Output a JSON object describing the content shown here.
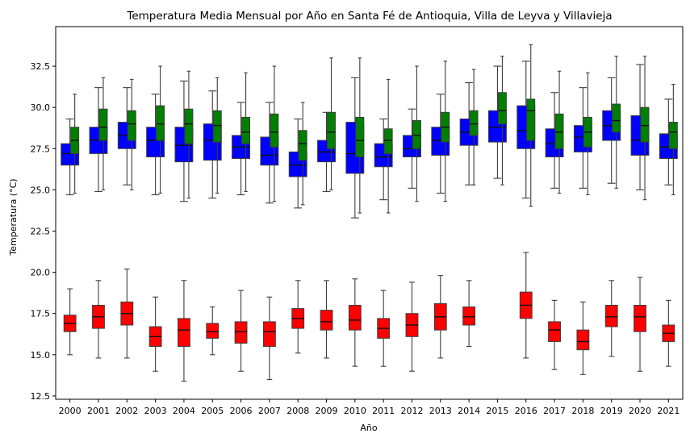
{
  "chart_data": {
    "type": "box",
    "title": "Temperatura Media Mensual por Año en Santa Fé de Antioquia, Villa de Leyva y Villavieja",
    "xlabel": "Año",
    "ylabel": "Temperatura (°C)",
    "ylim": [
      12.3,
      34.9
    ],
    "yticks": [
      "12.5",
      "15.0",
      "17.5",
      "20.0",
      "22.5",
      "25.0",
      "27.5",
      "30.0",
      "32.5"
    ],
    "categories": [
      "2000",
      "2001",
      "2002",
      "2003",
      "2004",
      "2005",
      "2006",
      "2007",
      "2008",
      "2009",
      "2010",
      "2011",
      "2012",
      "2013",
      "2014",
      "2015",
      "2016",
      "2017",
      "2018",
      "2019",
      "2020",
      "2021"
    ],
    "series": [
      {
        "color": "#0000ff",
        "boxes": [
          {
            "whislo": 24.7,
            "q1": 26.5,
            "med": 27.2,
            "q3": 27.8,
            "whishi": 29.3
          },
          {
            "whislo": 24.9,
            "q1": 27.2,
            "med": 28.0,
            "q3": 28.8,
            "whishi": 31.2
          },
          {
            "whislo": 25.3,
            "q1": 27.5,
            "med": 28.3,
            "q3": 29.1,
            "whishi": 31.2
          },
          {
            "whislo": 24.7,
            "q1": 27.0,
            "med": 28.0,
            "q3": 28.8,
            "whishi": 30.8
          },
          {
            "whislo": 24.3,
            "q1": 26.7,
            "med": 27.7,
            "q3": 28.8,
            "whishi": 31.6
          },
          {
            "whislo": 24.5,
            "q1": 26.8,
            "med": 28.0,
            "q3": 29.0,
            "whishi": 31.0
          },
          {
            "whislo": 24.7,
            "q1": 26.9,
            "med": 27.6,
            "q3": 28.3,
            "whishi": 30.3
          },
          {
            "whislo": 24.2,
            "q1": 26.5,
            "med": 27.1,
            "q3": 28.2,
            "whishi": 30.3
          },
          {
            "whislo": 23.9,
            "q1": 25.8,
            "med": 26.5,
            "q3": 27.3,
            "whishi": 29.3
          },
          {
            "whislo": 24.9,
            "q1": 26.7,
            "med": 27.3,
            "q3": 28.0,
            "whishi": 29.7
          },
          {
            "whislo": 23.3,
            "q1": 26.0,
            "med": 27.2,
            "q3": 29.1,
            "whishi": 31.8
          },
          {
            "whislo": 24.4,
            "q1": 26.4,
            "med": 27.0,
            "q3": 27.8,
            "whishi": 29.3
          },
          {
            "whislo": 25.1,
            "q1": 27.0,
            "med": 27.5,
            "q3": 28.3,
            "whishi": 29.9
          },
          {
            "whislo": 24.8,
            "q1": 27.1,
            "med": 28.0,
            "q3": 28.8,
            "whishi": 30.8
          },
          {
            "whislo": 25.3,
            "q1": 27.7,
            "med": 28.5,
            "q3": 29.3,
            "whishi": 31.5
          },
          {
            "whislo": 25.7,
            "q1": 27.9,
            "med": 28.8,
            "q3": 29.8,
            "whishi": 32.5
          },
          {
            "whislo": 24.5,
            "q1": 27.5,
            "med": 28.6,
            "q3": 30.1,
            "whishi": 32.8
          },
          {
            "whislo": 25.1,
            "q1": 27.0,
            "med": 27.8,
            "q3": 28.7,
            "whishi": 30.9
          },
          {
            "whislo": 25.1,
            "q1": 27.3,
            "med": 28.2,
            "q3": 28.9,
            "whishi": 31.2
          },
          {
            "whislo": 25.4,
            "q1": 28.0,
            "med": 28.9,
            "q3": 29.8,
            "whishi": 31.8
          },
          {
            "whislo": 25.0,
            "q1": 27.1,
            "med": 28.0,
            "q3": 29.5,
            "whishi": 32.6
          },
          {
            "whislo": 25.3,
            "q1": 26.9,
            "med": 27.6,
            "q3": 28.4,
            "whishi": 30.5
          }
        ]
      },
      {
        "color": "#008000",
        "boxes": [
          {
            "whislo": 24.8,
            "q1": 27.2,
            "med": 28.0,
            "q3": 28.8,
            "whishi": 30.8
          },
          {
            "whislo": 25.0,
            "q1": 28.0,
            "med": 28.8,
            "q3": 29.9,
            "whishi": 31.8
          },
          {
            "whislo": 25.0,
            "q1": 28.0,
            "med": 29.0,
            "q3": 29.8,
            "whishi": 31.7
          },
          {
            "whislo": 24.8,
            "q1": 28.0,
            "med": 29.0,
            "q3": 30.1,
            "whishi": 32.5
          },
          {
            "whislo": 24.5,
            "q1": 27.8,
            "med": 29.0,
            "q3": 29.9,
            "whishi": 32.2
          },
          {
            "whislo": 24.8,
            "q1": 27.9,
            "med": 28.9,
            "q3": 29.8,
            "whishi": 31.8
          },
          {
            "whislo": 24.9,
            "q1": 27.8,
            "med": 28.5,
            "q3": 29.4,
            "whishi": 32.1
          },
          {
            "whislo": 24.3,
            "q1": 27.6,
            "med": 28.5,
            "q3": 29.6,
            "whishi": 32.5
          },
          {
            "whislo": 24.1,
            "q1": 26.8,
            "med": 27.8,
            "q3": 28.6,
            "whishi": 30.3
          },
          {
            "whislo": 25.0,
            "q1": 27.5,
            "med": 28.5,
            "q3": 29.7,
            "whishi": 33.0
          },
          {
            "whislo": 23.6,
            "q1": 27.0,
            "med": 28.0,
            "q3": 29.4,
            "whishi": 33.0
          },
          {
            "whislo": 23.6,
            "q1": 27.2,
            "med": 28.0,
            "q3": 28.7,
            "whishi": 31.7
          },
          {
            "whislo": 24.3,
            "q1": 27.5,
            "med": 28.3,
            "q3": 29.2,
            "whishi": 32.5
          },
          {
            "whislo": 24.3,
            "q1": 27.9,
            "med": 28.8,
            "q3": 29.7,
            "whishi": 32.8
          },
          {
            "whislo": 25.3,
            "q1": 28.3,
            "med": 29.0,
            "q3": 29.8,
            "whishi": 32.3
          },
          {
            "whislo": 25.3,
            "q1": 29.0,
            "med": 29.8,
            "q3": 30.9,
            "whishi": 33.1
          },
          {
            "whislo": 24.0,
            "q1": 28.0,
            "med": 29.8,
            "q3": 30.5,
            "whishi": 33.8
          },
          {
            "whislo": 24.8,
            "q1": 27.5,
            "med": 28.5,
            "q3": 29.6,
            "whishi": 32.2
          },
          {
            "whislo": 24.7,
            "q1": 27.6,
            "med": 28.5,
            "q3": 29.4,
            "whishi": 32.1
          },
          {
            "whislo": 25.1,
            "q1": 28.5,
            "med": 29.2,
            "q3": 30.2,
            "whishi": 33.1
          },
          {
            "whislo": 24.4,
            "q1": 27.9,
            "med": 28.9,
            "q3": 30.0,
            "whishi": 33.1
          },
          {
            "whislo": 24.7,
            "q1": 27.5,
            "med": 28.5,
            "q3": 29.1,
            "whishi": 31.4
          }
        ]
      },
      {
        "color": "#ff0000",
        "boxes": [
          {
            "whislo": 15.0,
            "q1": 16.4,
            "med": 16.9,
            "q3": 17.4,
            "whishi": 19.0
          },
          {
            "whislo": 14.8,
            "q1": 16.6,
            "med": 17.3,
            "q3": 18.0,
            "whishi": 19.5
          },
          {
            "whislo": 14.8,
            "q1": 16.8,
            "med": 17.5,
            "q3": 18.2,
            "whishi": 20.2
          },
          {
            "whislo": 14.0,
            "q1": 15.5,
            "med": 16.1,
            "q3": 16.7,
            "whishi": 18.5
          },
          {
            "whislo": 13.4,
            "q1": 15.5,
            "med": 16.5,
            "q3": 17.2,
            "whishi": 19.5
          },
          {
            "whislo": 15.0,
            "q1": 16.0,
            "med": 16.4,
            "q3": 16.9,
            "whishi": 17.9
          },
          {
            "whislo": 14.0,
            "q1": 15.7,
            "med": 16.4,
            "q3": 17.0,
            "whishi": 18.9
          },
          {
            "whislo": 13.5,
            "q1": 15.5,
            "med": 16.4,
            "q3": 17.0,
            "whishi": 18.5
          },
          {
            "whislo": 15.1,
            "q1": 16.6,
            "med": 17.2,
            "q3": 17.8,
            "whishi": 19.5
          },
          {
            "whislo": 14.8,
            "q1": 16.5,
            "med": 17.0,
            "q3": 17.7,
            "whishi": 19.5
          },
          {
            "whislo": 14.3,
            "q1": 16.5,
            "med": 17.1,
            "q3": 18.0,
            "whishi": 19.6
          },
          {
            "whislo": 14.3,
            "q1": 16.0,
            "med": 16.6,
            "q3": 17.2,
            "whishi": 18.9
          },
          {
            "whislo": 14.0,
            "q1": 16.1,
            "med": 16.8,
            "q3": 17.5,
            "whishi": 19.4
          },
          {
            "whislo": 14.8,
            "q1": 16.5,
            "med": 17.3,
            "q3": 18.1,
            "whishi": 19.8
          },
          {
            "whislo": 15.5,
            "q1": 16.8,
            "med": 17.3,
            "q3": 17.9,
            "whishi": 19.5
          },
          null,
          {
            "whislo": 14.8,
            "q1": 17.2,
            "med": 18.0,
            "q3": 18.8,
            "whishi": 21.2
          },
          {
            "whislo": 14.1,
            "q1": 15.8,
            "med": 16.5,
            "q3": 17.0,
            "whishi": 18.3
          },
          {
            "whislo": 13.8,
            "q1": 15.3,
            "med": 15.8,
            "q3": 16.5,
            "whishi": 18.2
          },
          {
            "whislo": 14.9,
            "q1": 16.7,
            "med": 17.3,
            "q3": 18.0,
            "whishi": 19.5
          },
          {
            "whislo": 14.0,
            "q1": 16.4,
            "med": 17.3,
            "q3": 18.0,
            "whishi": 19.7
          },
          {
            "whislo": 14.3,
            "q1": 15.8,
            "med": 16.3,
            "q3": 16.8,
            "whishi": 18.3
          }
        ]
      }
    ]
  }
}
